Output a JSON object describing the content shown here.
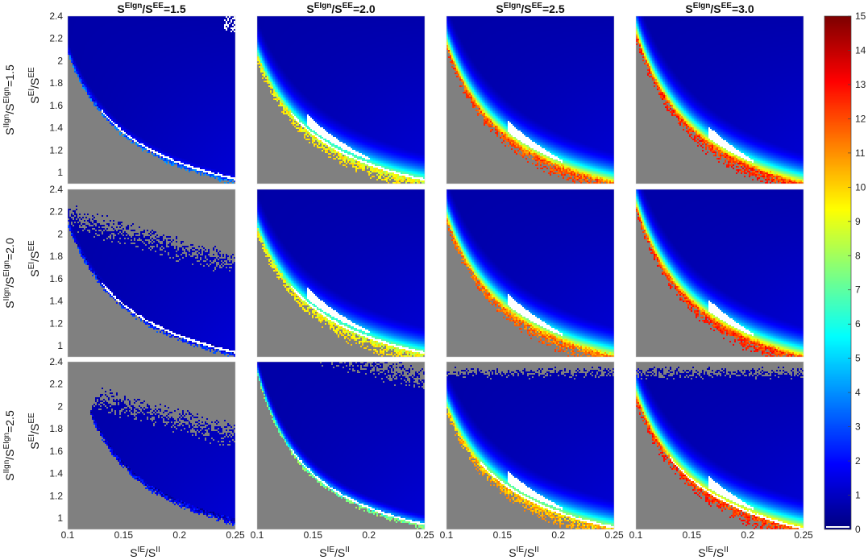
{
  "chart_data": {
    "type": "heatmap",
    "layout": "3x4 grid of heatmaps sharing one colorbar",
    "column_titles": [
      {
        "base": "S",
        "sup1": "EIgn",
        "mid": "/S",
        "sup2": "EE",
        "value": "=1.5"
      },
      {
        "base": "S",
        "sup1": "EIgn",
        "mid": "/S",
        "sup2": "EE",
        "value": "=2.0"
      },
      {
        "base": "S",
        "sup1": "EIgn",
        "mid": "/S",
        "sup2": "EE",
        "value": "=2.5"
      },
      {
        "base": "S",
        "sup1": "EIgn",
        "mid": "/S",
        "sup2": "EE",
        "value": "=3.0"
      }
    ],
    "row_titles": [
      {
        "base": "S",
        "sup1": "IIgn",
        "mid": "/S",
        "sup2": "EIgn",
        "value": "=1.5"
      },
      {
        "base": "S",
        "sup1": "IIgn",
        "mid": "/S",
        "sup2": "EIgn",
        "value": "=2.0"
      },
      {
        "base": "S",
        "sup1": "IIgn",
        "mid": "/S",
        "sup2": "EIgn",
        "value": "=2.5"
      }
    ],
    "ylabel": {
      "base": "S",
      "sup1": "EI",
      "mid": "/S",
      "sup2": "EE"
    },
    "xlabel": {
      "base": "S",
      "sup1": "IE",
      "mid": "/S",
      "sup2": "II"
    },
    "xlim": [
      0.1,
      0.25
    ],
    "ylim": [
      0.9,
      2.4
    ],
    "xticks": [
      "0.1",
      "0.15",
      "0.2",
      "0.25"
    ],
    "yticks": [
      "1",
      "1.2",
      "1.4",
      "1.6",
      "1.8",
      "2",
      "2.2",
      "2.4"
    ],
    "colorbar": {
      "min": 0,
      "max": 15,
      "ticks": [
        "0",
        "1",
        "2",
        "3",
        "4",
        "5",
        "6",
        "7",
        "8",
        "9",
        "10",
        "11",
        "12",
        "13",
        "14",
        "15"
      ],
      "colormap": "jet"
    },
    "colors": {
      "masked": "#808080",
      "saturated": "#ffffff"
    },
    "panels": [
      {
        "row": 0,
        "col": 0,
        "boundary": {
          "x0": 0.1,
          "y0": 2.08,
          "x1": 0.245,
          "y1": 0.94
        },
        "white_band": "thin",
        "white_blob": false,
        "edge_peak": 3,
        "top_right_scatter": true
      },
      {
        "row": 0,
        "col": 1,
        "boundary": {
          "x0": 0.1,
          "y0": 2.05,
          "x1": 0.25,
          "y1": 0.92
        },
        "white_band": "thin",
        "white_blob": true,
        "edge_peak": 9
      },
      {
        "row": 0,
        "col": 2,
        "boundary": {
          "x0": 0.1,
          "y0": 2.15,
          "x1": 0.258,
          "y1": 0.88
        },
        "white_band": "none",
        "white_blob": true,
        "edge_peak": 11.5
      },
      {
        "row": 0,
        "col": 3,
        "boundary": {
          "x0": 0.1,
          "y0": 2.25,
          "x1": 0.262,
          "y1": 0.86
        },
        "white_band": "none",
        "white_blob": true,
        "edge_peak": 12
      },
      {
        "row": 1,
        "col": 0,
        "boundary": {
          "x0": 0.1,
          "y0": 2.1,
          "x1": 0.24,
          "y1": 0.95
        },
        "white_band": "thin",
        "white_blob": false,
        "edge_peak": 2,
        "upper_gray_wedge": true
      },
      {
        "row": 1,
        "col": 1,
        "boundary": {
          "x0": 0.1,
          "y0": 2.05,
          "x1": 0.25,
          "y1": 0.92
        },
        "white_band": "thin",
        "white_blob": true,
        "edge_peak": 9
      },
      {
        "row": 1,
        "col": 2,
        "boundary": {
          "x0": 0.1,
          "y0": 2.15,
          "x1": 0.258,
          "y1": 0.88
        },
        "white_band": "none",
        "white_blob": true,
        "edge_peak": 11
      },
      {
        "row": 1,
        "col": 3,
        "boundary": {
          "x0": 0.1,
          "y0": 2.25,
          "x1": 0.262,
          "y1": 0.86
        },
        "white_band": "none",
        "white_blob": true,
        "edge_peak": 12
      },
      {
        "row": 2,
        "col": 0,
        "boundary": {
          "x0": 0.12,
          "y0": 1.95,
          "x1": 0.25,
          "y1": 0.97
        },
        "white_band": "none",
        "white_blob": false,
        "edge_peak": 1.5,
        "upper_gray_wedge": true,
        "left_gray_wedge": true
      },
      {
        "row": 2,
        "col": 1,
        "boundary": {
          "x0": 0.112,
          "y0": 1.95,
          "x1": 0.25,
          "y1": 0.93
        },
        "white_band": "thin",
        "white_blob": false,
        "edge_peak": 7,
        "upper_gray_wedge": true
      },
      {
        "row": 2,
        "col": 2,
        "boundary": {
          "x0": 0.1,
          "y0": 2.0,
          "x1": 0.256,
          "y1": 0.89
        },
        "white_band": "thin",
        "white_blob": true,
        "edge_peak": 10,
        "top_gray_strip": true
      },
      {
        "row": 2,
        "col": 3,
        "boundary": {
          "x0": 0.1,
          "y0": 2.1,
          "x1": 0.26,
          "y1": 0.87
        },
        "white_band": "thin",
        "white_blob": true,
        "edge_peak": 12,
        "top_gray_strip": true
      }
    ]
  }
}
